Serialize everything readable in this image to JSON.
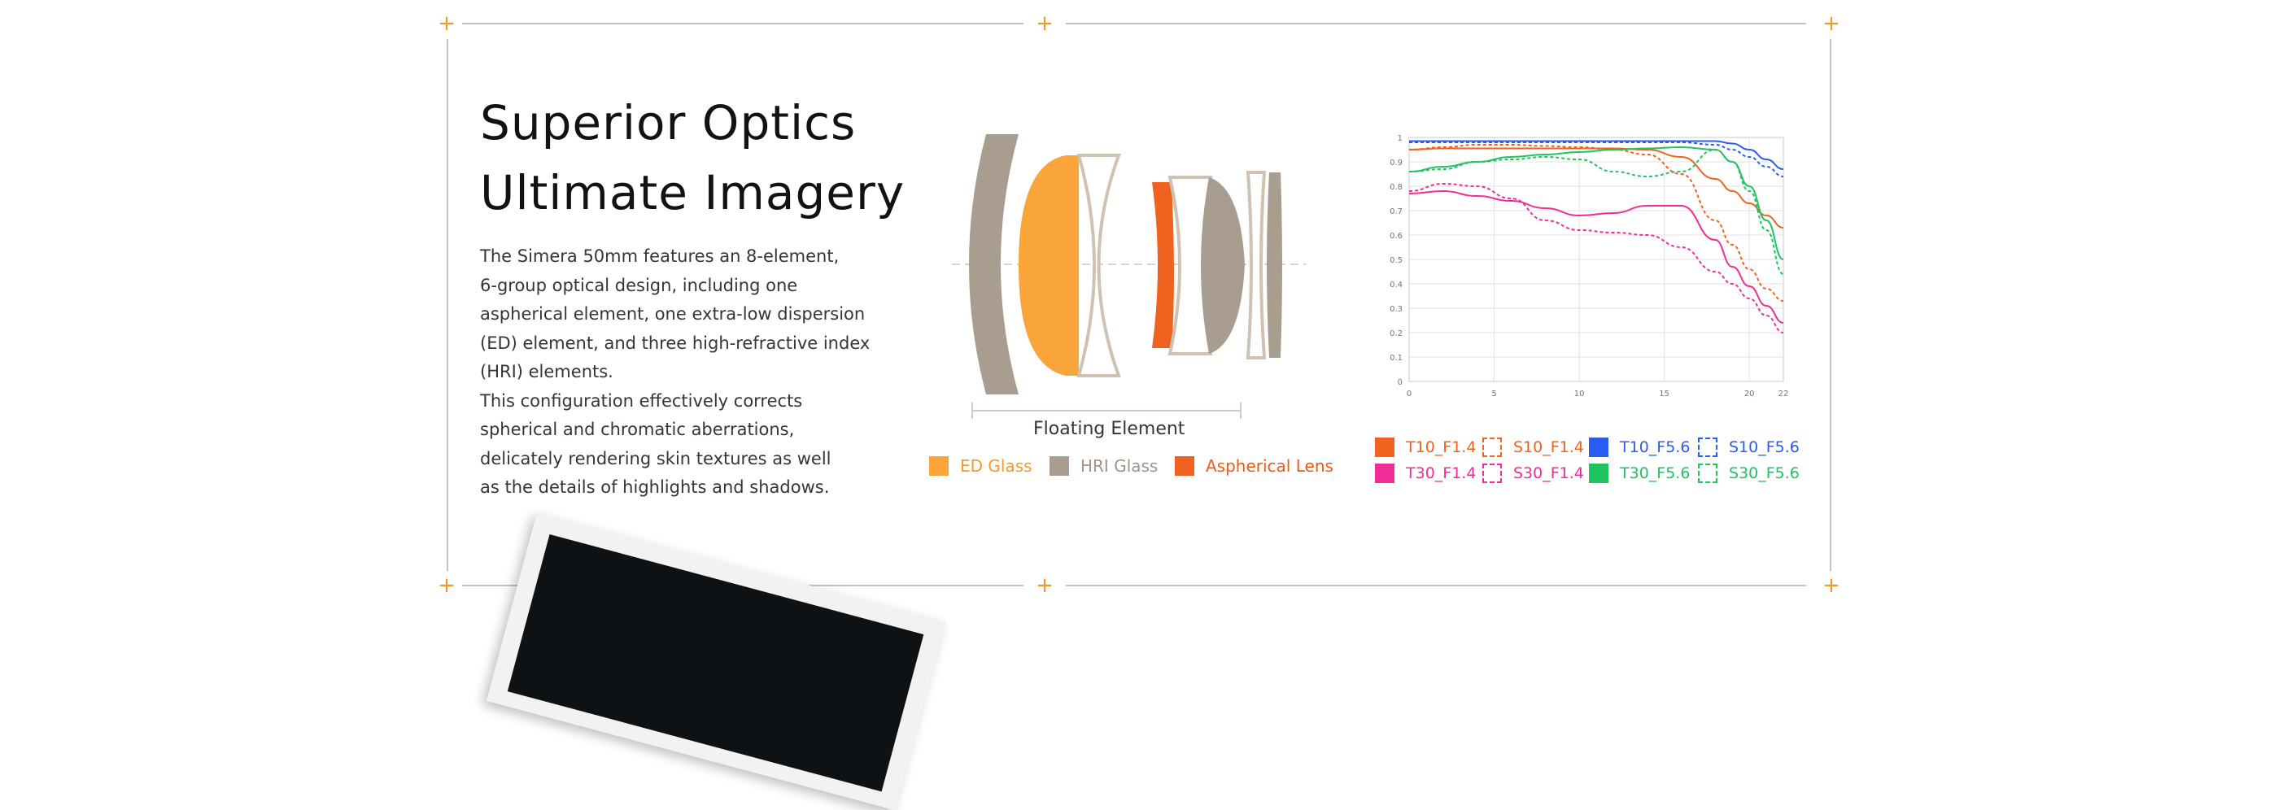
{
  "heading": {
    "line1": "Superior Optics",
    "line2": "Ultimate Imagery"
  },
  "description": {
    "p1_lines": [
      "The Simera 50mm features an 8-element,",
      "6-group optical design, including one",
      "aspherical element, one extra-low dispersion",
      "(ED) element, and three high-refractive index",
      "(HRI) elements."
    ],
    "p2_lines": [
      "This configuration effectively corrects",
      "spherical and chromatic aberrations,",
      "delicately rendering skin textures as well",
      "as the details of highlights and shadows."
    ]
  },
  "lens_diagram": {
    "floating_label": "Floating Element",
    "legend": [
      {
        "label": "ED Glass",
        "color": "#f9a53a",
        "text_color": "#f39a2e"
      },
      {
        "label": "HRI Glass",
        "color": "#a99d8f",
        "text_color": "#a09486"
      },
      {
        "label": "Aspherical Lens",
        "color": "#f0621f",
        "text_color": "#ee5a1c"
      }
    ]
  },
  "chart_data": {
    "type": "line",
    "title": "",
    "xlabel": "",
    "ylabel": "",
    "xlim": [
      0,
      22
    ],
    "ylim": [
      0,
      1
    ],
    "x_ticks": [
      "0",
      "5",
      "10",
      "15",
      "20",
      "22"
    ],
    "y_ticks": [
      "0",
      "0.1",
      "0.2",
      "0.3",
      "0.4",
      "0.5",
      "0.6",
      "0.7",
      "0.8",
      "0.9",
      "1"
    ],
    "grid": true,
    "x": [
      0,
      2,
      4,
      6,
      8,
      10,
      12,
      14,
      16,
      18,
      19,
      20,
      21,
      22
    ],
    "series": [
      {
        "name": "T10_F1.4",
        "color": "#f0621f",
        "dashed": false,
        "values": [
          0.95,
          0.955,
          0.955,
          0.955,
          0.955,
          0.955,
          0.955,
          0.95,
          0.92,
          0.83,
          0.78,
          0.73,
          0.68,
          0.63
        ]
      },
      {
        "name": "S10_F1.4",
        "color": "#f0621f",
        "dashed": true,
        "values": [
          0.95,
          0.96,
          0.97,
          0.97,
          0.965,
          0.96,
          0.95,
          0.93,
          0.85,
          0.66,
          0.56,
          0.46,
          0.38,
          0.33
        ]
      },
      {
        "name": "T10_F5.6",
        "color": "#2a5cf0",
        "dashed": false,
        "values": [
          0.985,
          0.985,
          0.985,
          0.985,
          0.985,
          0.985,
          0.985,
          0.985,
          0.985,
          0.985,
          0.975,
          0.95,
          0.91,
          0.87
        ]
      },
      {
        "name": "S10_F5.6",
        "color": "#2a5cf0",
        "dashed": true,
        "values": [
          0.98,
          0.98,
          0.98,
          0.98,
          0.98,
          0.98,
          0.98,
          0.98,
          0.98,
          0.97,
          0.95,
          0.92,
          0.88,
          0.84
        ]
      },
      {
        "name": "T30_F1.4",
        "color": "#f02d97",
        "dashed": false,
        "values": [
          0.77,
          0.78,
          0.76,
          0.74,
          0.71,
          0.68,
          0.69,
          0.72,
          0.72,
          0.58,
          0.47,
          0.39,
          0.31,
          0.24
        ]
      },
      {
        "name": "S30_F1.4",
        "color": "#f02d97",
        "dashed": true,
        "values": [
          0.78,
          0.81,
          0.8,
          0.75,
          0.66,
          0.62,
          0.61,
          0.6,
          0.55,
          0.45,
          0.4,
          0.34,
          0.27,
          0.2
        ]
      },
      {
        "name": "T30_F5.6",
        "color": "#1fc460",
        "dashed": false,
        "values": [
          0.86,
          0.88,
          0.9,
          0.92,
          0.93,
          0.94,
          0.95,
          0.955,
          0.96,
          0.95,
          0.9,
          0.8,
          0.66,
          0.5
        ]
      },
      {
        "name": "S30_F5.6",
        "color": "#1fc460",
        "dashed": true,
        "values": [
          0.86,
          0.87,
          0.9,
          0.91,
          0.92,
          0.91,
          0.86,
          0.84,
          0.86,
          0.95,
          0.9,
          0.78,
          0.62,
          0.44
        ]
      }
    ]
  }
}
